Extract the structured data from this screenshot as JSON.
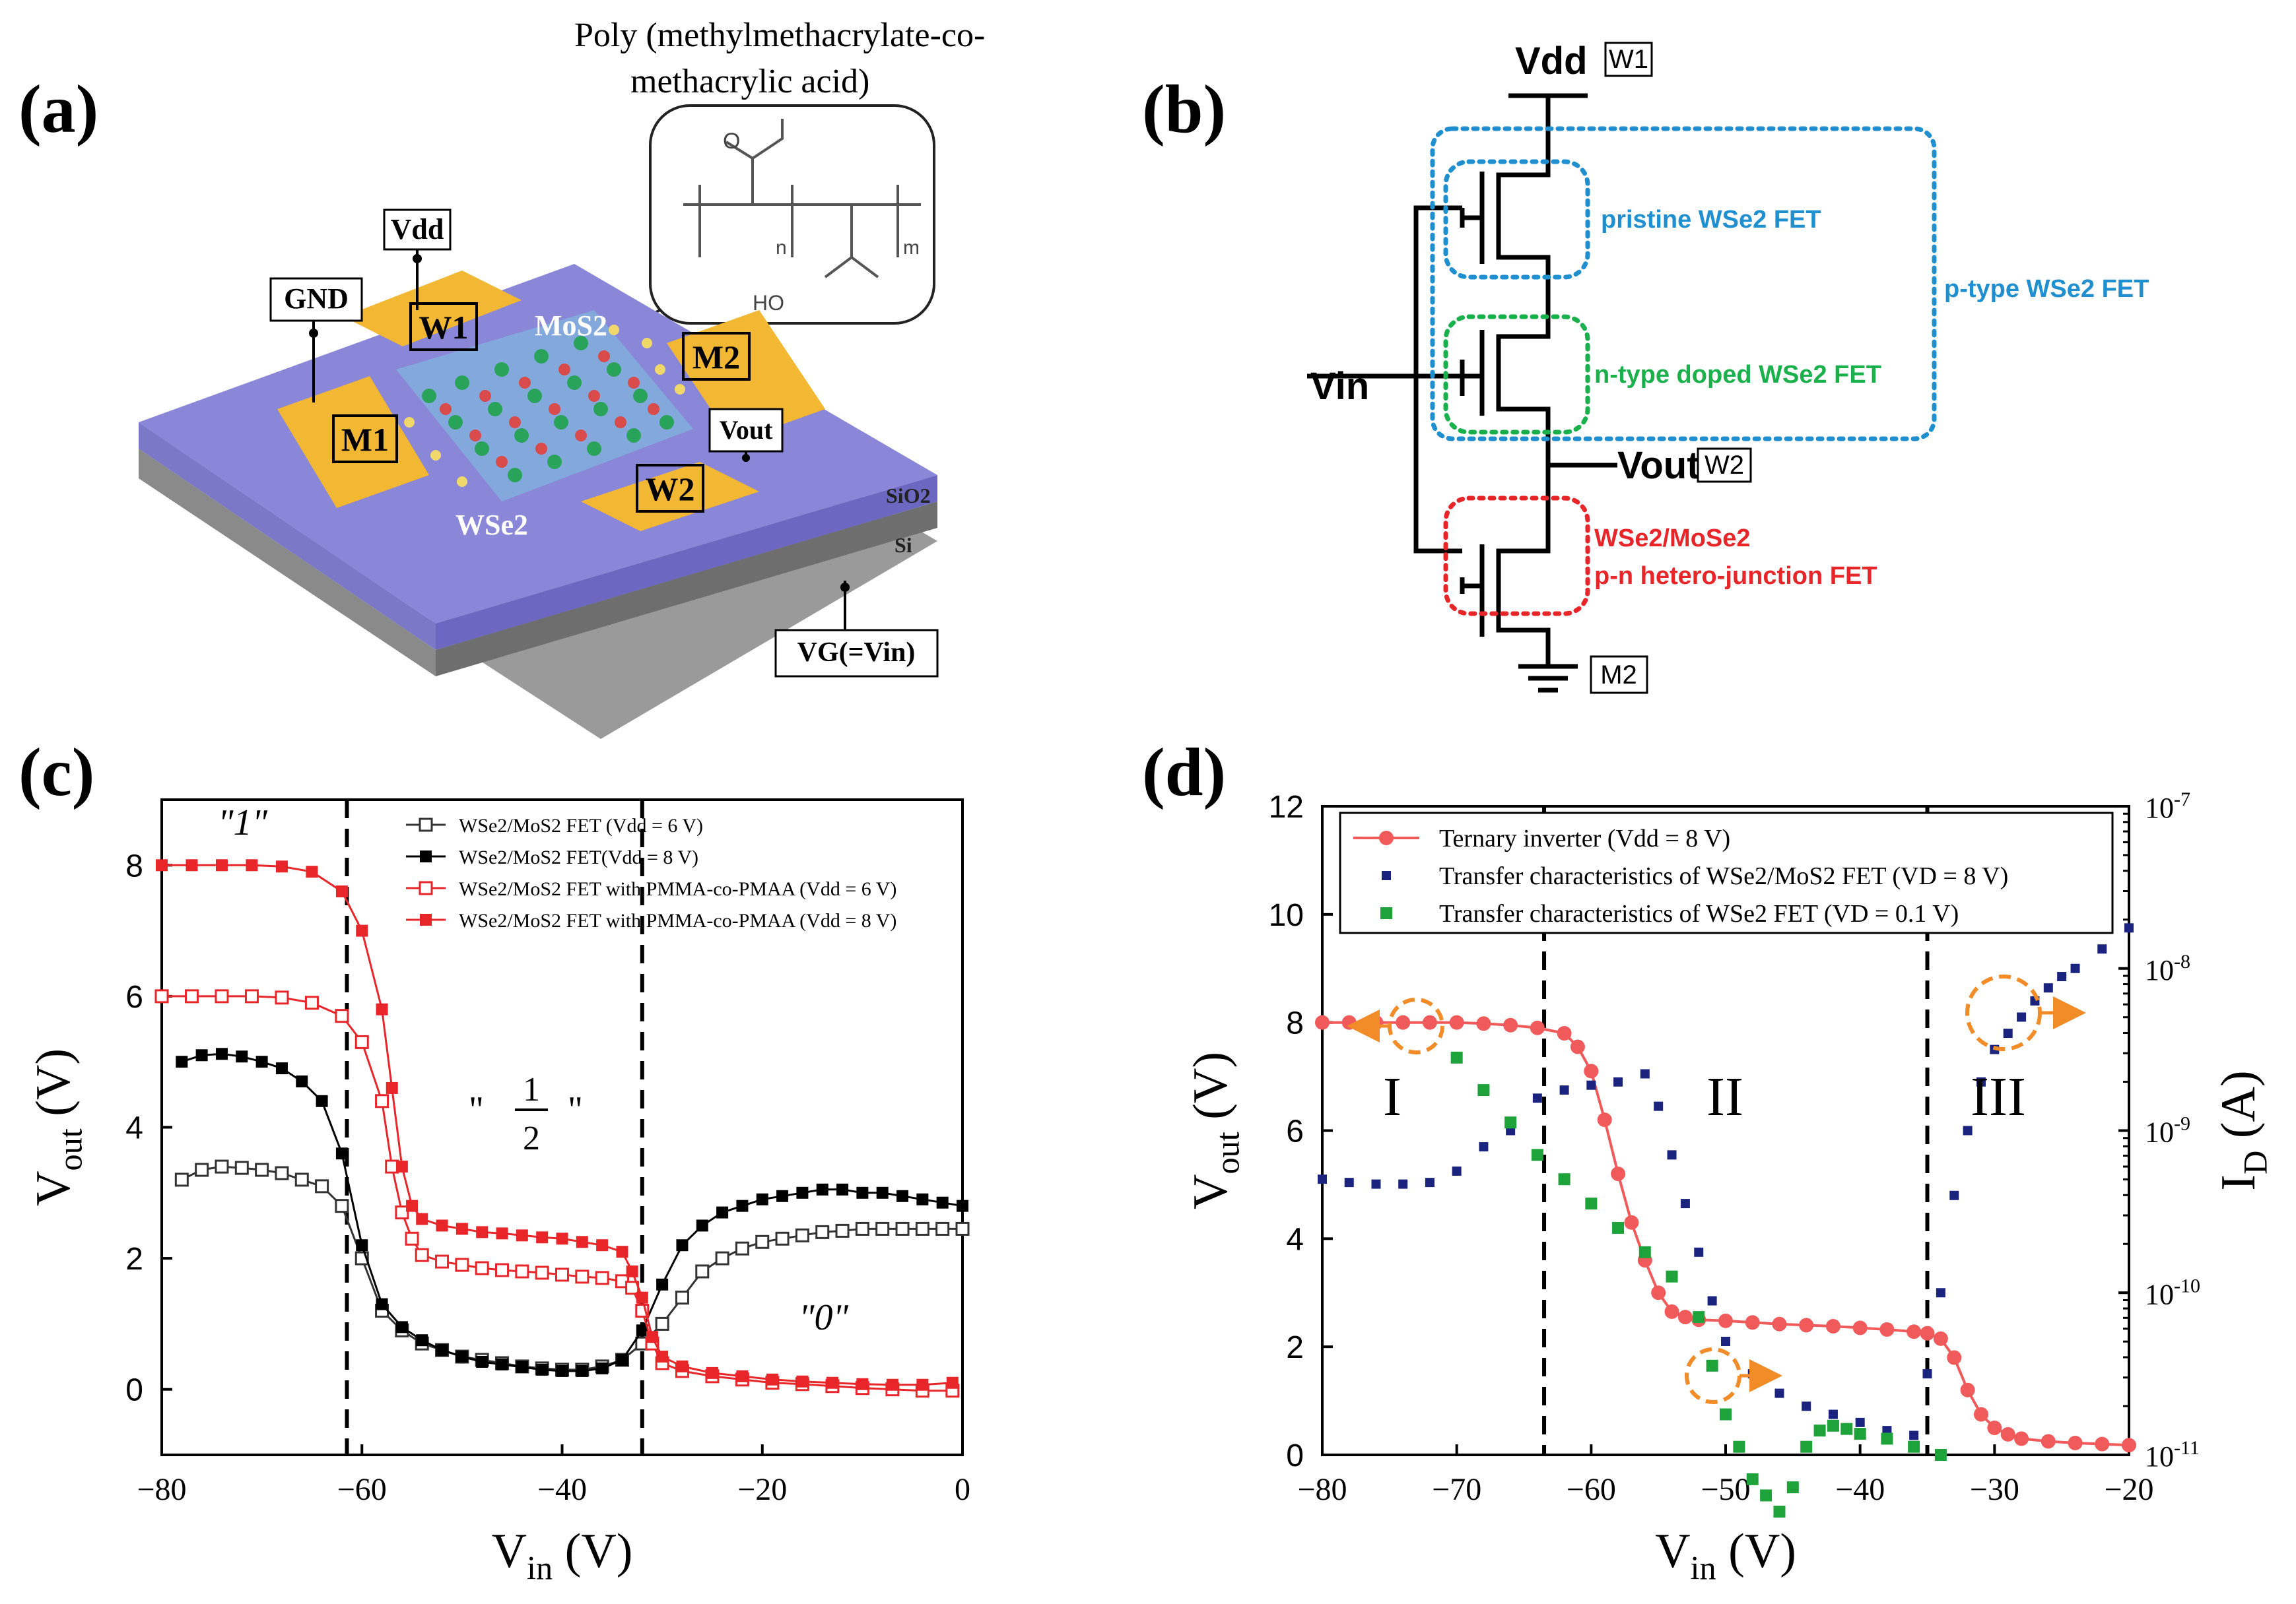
{
  "panels": {
    "a": {
      "label": "(a)",
      "polymer_title_1": "Poly (methylmethacrylate-co-",
      "polymer_title_2": "methacrylic  acid)",
      "struct_n": "n",
      "struct_m": "m",
      "struct_oh": "HO",
      "struct_o": "O",
      "vdd": "Vdd",
      "gnd": "GND",
      "w1": "W1",
      "w2": "W2",
      "m1": "M1",
      "m2": "M2",
      "mos2": "MoS2",
      "wse2": "WSe2",
      "vout": "Vout",
      "sio2": "SiO2",
      "si": "Si",
      "vg": "VG(=Vin)"
    },
    "b": {
      "label": "(b)",
      "vdd": "Vdd",
      "w1": "W1",
      "vin": "Vin",
      "vout": "Vout",
      "w2": "W2",
      "m2": "M2",
      "pristine": "pristine WSe2 FET",
      "ntype": "n-type doped WSe2 FET",
      "ptype": "p-type WSe2 FET",
      "hetero_1": "WSe2/MoSe2",
      "hetero_2": "p-n hetero-junction FET",
      "colors": {
        "blue": "#1f8fd0",
        "green": "#1ab04b",
        "red": "#e8262a"
      }
    },
    "c": {
      "label": "(c)",
      "state_1": "\"1\"",
      "state_half_num": "1",
      "state_half_den": "2",
      "state_0": "\"0\""
    },
    "d": {
      "label": "(d)",
      "region_1": "I",
      "region_2": "II",
      "region_3": "III"
    }
  },
  "chart_data": [
    {
      "panel": "c",
      "type": "scatter",
      "xlabel": "Vin (V)",
      "ylabel": "Vout (V)",
      "xlim": [
        -80,
        0
      ],
      "ylim": [
        -1,
        9
      ],
      "xticks": [
        -80,
        -60,
        -40,
        -20,
        0
      ],
      "yticks": [
        0,
        2,
        4,
        6,
        8
      ],
      "vlines": [
        -61.5,
        -32
      ],
      "series": [
        {
          "name": "WSe2/MoS2 FET (Vdd = 6 V)",
          "color": "#333333",
          "marker": "open-square",
          "x": [
            -78,
            -76,
            -74,
            -72,
            -70,
            -68,
            -66,
            -64,
            -62,
            -60,
            -58,
            -56,
            -54,
            -52,
            -50,
            -48,
            -46,
            -44,
            -42,
            -40,
            -38,
            -36,
            -34,
            -32,
            -30,
            -28,
            -26,
            -24,
            -22,
            -20,
            -18,
            -16,
            -14,
            -12,
            -10,
            -8,
            -6,
            -4,
            -2,
            0
          ],
          "y": [
            3.2,
            3.35,
            3.4,
            3.38,
            3.35,
            3.3,
            3.2,
            3.1,
            2.8,
            2.0,
            1.2,
            0.9,
            0.7,
            0.6,
            0.5,
            0.45,
            0.4,
            0.35,
            0.32,
            0.3,
            0.3,
            0.35,
            0.45,
            0.7,
            1.0,
            1.4,
            1.8,
            2.0,
            2.15,
            2.25,
            2.3,
            2.35,
            2.4,
            2.42,
            2.45,
            2.45,
            2.45,
            2.45,
            2.45,
            2.45
          ]
        },
        {
          "name": "WSe2/MoS2 FET(Vdd = 8 V)",
          "color": "#000000",
          "marker": "filled-square",
          "x": [
            -78,
            -76,
            -74,
            -72,
            -70,
            -68,
            -66,
            -64,
            -62,
            -60,
            -58,
            -56,
            -54,
            -52,
            -50,
            -48,
            -46,
            -44,
            -42,
            -40,
            -38,
            -36,
            -34,
            -32,
            -30,
            -28,
            -26,
            -24,
            -22,
            -20,
            -18,
            -16,
            -14,
            -12,
            -10,
            -8,
            -6,
            -4,
            -2,
            0
          ],
          "y": [
            5.0,
            5.1,
            5.12,
            5.08,
            5.0,
            4.9,
            4.7,
            4.4,
            3.6,
            2.2,
            1.3,
            0.95,
            0.75,
            0.6,
            0.5,
            0.42,
            0.38,
            0.34,
            0.3,
            0.28,
            0.28,
            0.32,
            0.45,
            0.9,
            1.6,
            2.2,
            2.5,
            2.7,
            2.8,
            2.9,
            2.95,
            3.0,
            3.05,
            3.05,
            3.0,
            3.0,
            2.95,
            2.9,
            2.85,
            2.8
          ]
        },
        {
          "name": "WSe2/MoS2 FET with PMMA-co-PMAA  (Vdd = 6 V)",
          "color": "#e8262a",
          "marker": "open-square",
          "x": [
            -80,
            -77,
            -74,
            -71,
            -68,
            -65,
            -62,
            -60,
            -58,
            -57,
            -56,
            -55,
            -54,
            -52,
            -50,
            -48,
            -46,
            -44,
            -42,
            -40,
            -38,
            -36,
            -34,
            -33,
            -32,
            -31,
            -30,
            -28,
            -25,
            -22,
            -19,
            -16,
            -13,
            -10,
            -7,
            -4,
            -1
          ],
          "y": [
            6.0,
            6.0,
            6.0,
            6.0,
            5.98,
            5.9,
            5.7,
            5.3,
            4.4,
            3.4,
            2.7,
            2.3,
            2.05,
            1.95,
            1.9,
            1.85,
            1.82,
            1.8,
            1.78,
            1.75,
            1.72,
            1.7,
            1.65,
            1.55,
            1.2,
            0.7,
            0.4,
            0.28,
            0.2,
            0.15,
            0.1,
            0.08,
            0.05,
            0.02,
            0.0,
            -0.02,
            -0.02
          ]
        },
        {
          "name": "WSe2/MoS2 FET with PMMA-co-PMAA  (Vdd = 8 V)",
          "color": "#e8262a",
          "marker": "filled-square",
          "x": [
            -80,
            -77,
            -74,
            -71,
            -68,
            -65,
            -62,
            -60,
            -58,
            -57,
            -56,
            -55,
            -54,
            -52,
            -50,
            -48,
            -46,
            -44,
            -42,
            -40,
            -38,
            -36,
            -34,
            -33,
            -32,
            -31,
            -30,
            -28,
            -25,
            -22,
            -19,
            -16,
            -13,
            -10,
            -7,
            -4,
            -1
          ],
          "y": [
            8.0,
            8.0,
            8.0,
            8.0,
            7.98,
            7.9,
            7.6,
            7.0,
            5.8,
            4.6,
            3.4,
            2.8,
            2.6,
            2.5,
            2.45,
            2.4,
            2.38,
            2.35,
            2.32,
            2.3,
            2.25,
            2.2,
            2.1,
            1.8,
            1.4,
            0.8,
            0.5,
            0.35,
            0.25,
            0.2,
            0.15,
            0.12,
            0.1,
            0.08,
            0.07,
            0.07,
            0.1
          ]
        }
      ]
    },
    {
      "panel": "d",
      "type": "scatter",
      "xlabel": "Vin (V)",
      "ylabel": "Vout (V)",
      "y2label": "ID (A)",
      "xlim": [
        -80,
        -20
      ],
      "ylim": [
        0,
        12
      ],
      "y2lim_log10": [
        -11,
        -7
      ],
      "xticks": [
        -80,
        -70,
        -60,
        -50,
        -40,
        -30,
        -20
      ],
      "yticks": [
        0,
        2,
        4,
        6,
        8,
        10,
        12
      ],
      "y2ticks_exponent": [
        -11,
        -10,
        -9,
        -8,
        -7
      ],
      "y2tick_base": "10",
      "vlines": [
        -63.5,
        -35
      ],
      "series": [
        {
          "name": "Ternary inverter (Vdd = 8 V)",
          "color": "#f15a5a",
          "marker": "circle-line",
          "axis": "left",
          "x": [
            -80,
            -78,
            -76,
            -74,
            -72,
            -70,
            -68,
            -66,
            -64,
            -62,
            -61,
            -60,
            -59,
            -58,
            -57,
            -56,
            -55,
            -54,
            -53,
            -52,
            -50,
            -48,
            -46,
            -44,
            -42,
            -40,
            -38,
            -36,
            -35,
            -34,
            -33,
            -32,
            -31,
            -30,
            -29,
            -28,
            -26,
            -24,
            -22,
            -20
          ],
          "y": [
            8.0,
            8.0,
            8.0,
            8.0,
            8.0,
            8.0,
            7.98,
            7.95,
            7.9,
            7.8,
            7.55,
            7.1,
            6.2,
            5.2,
            4.3,
            3.6,
            3.0,
            2.65,
            2.55,
            2.5,
            2.48,
            2.45,
            2.42,
            2.4,
            2.38,
            2.35,
            2.32,
            2.28,
            2.25,
            2.15,
            1.8,
            1.2,
            0.75,
            0.5,
            0.38,
            0.3,
            0.25,
            0.22,
            0.2,
            0.18
          ]
        },
        {
          "name": "Transfer characteristics of WSe2/MoS2 FET (VD = 8 V)",
          "color": "#1a237e",
          "marker": "small-square",
          "axis": "right",
          "x": [
            -80,
            -78,
            -76,
            -74,
            -72,
            -70,
            -68,
            -66,
            -64,
            -62,
            -60,
            -58,
            -56,
            -55,
            -54,
            -53,
            -52,
            -51,
            -50,
            -48,
            -46,
            -44,
            -42,
            -40,
            -38,
            -36,
            -35,
            -34,
            -33,
            -32,
            -31,
            -30,
            -29,
            -28,
            -27,
            -26,
            -25,
            -24,
            -22,
            -20
          ],
          "log10_y": [
            -9.3,
            -9.32,
            -9.33,
            -9.33,
            -9.32,
            -9.25,
            -9.1,
            -9.0,
            -8.8,
            -8.75,
            -8.72,
            -8.7,
            -8.65,
            -8.85,
            -9.15,
            -9.45,
            -9.75,
            -10.05,
            -10.3,
            -10.5,
            -10.62,
            -10.7,
            -10.75,
            -10.8,
            -10.85,
            -10.88,
            -10.5,
            -10.0,
            -9.4,
            -9.0,
            -8.7,
            -8.5,
            -8.4,
            -8.3,
            -8.2,
            -8.12,
            -8.05,
            -8.0,
            -7.88,
            -7.75
          ]
        },
        {
          "name": "Transfer characteristics of WSe2 FET (VD = 0.1 V)",
          "color": "#1ea23a",
          "marker": "filled-square",
          "axis": "right",
          "x": [
            -70,
            -68,
            -66,
            -64,
            -62,
            -60,
            -58,
            -56,
            -54,
            -52,
            -51,
            -50,
            -49,
            -48,
            -47,
            -46,
            -45,
            -44,
            -43,
            -42,
            -41,
            -40,
            -38,
            -36,
            -34
          ],
          "log10_y": [
            -8.55,
            -8.75,
            -8.95,
            -9.15,
            -9.3,
            -9.45,
            -9.6,
            -9.75,
            -9.9,
            -10.15,
            -10.45,
            -10.75,
            -10.95,
            -11.15,
            -11.25,
            -11.35,
            -11.2,
            -10.95,
            -10.85,
            -10.82,
            -10.84,
            -10.87,
            -10.9,
            -10.95,
            -11.0
          ]
        }
      ]
    }
  ]
}
